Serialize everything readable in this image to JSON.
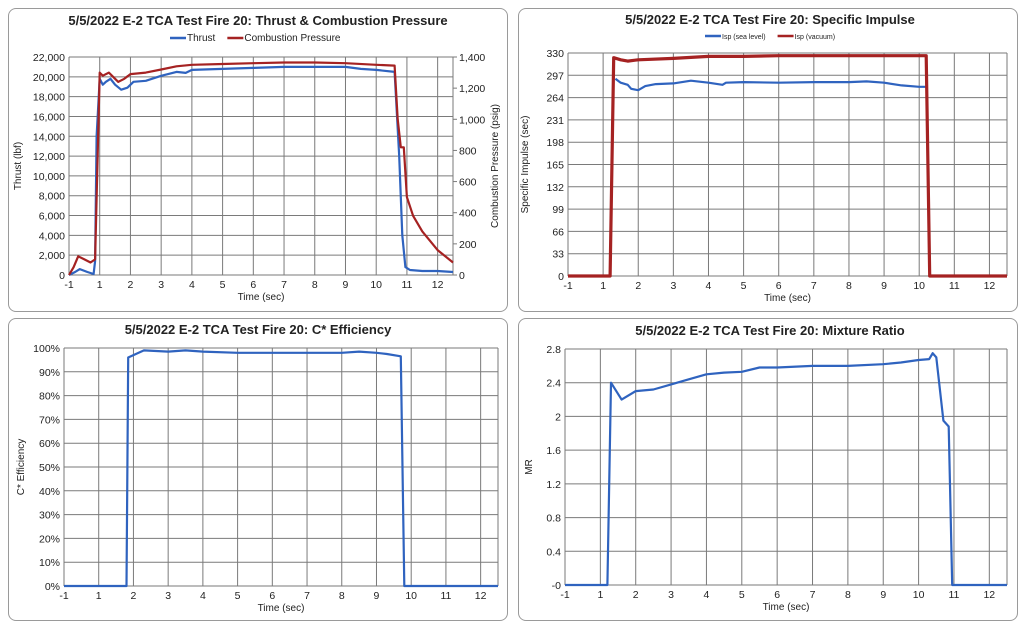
{
  "colors": {
    "blue": "#2f63bf",
    "red": "#a52222",
    "grid": "#7a7a7a"
  },
  "x_tick_labels": [
    "-1",
    "1",
    "2",
    "3",
    "4",
    "5",
    "6",
    "7",
    "8",
    "9",
    "10",
    "11",
    "12"
  ],
  "chart_data": [
    {
      "type": "line",
      "title": "5/5/2022 E-2 TCA Test Fire 20: Thrust & Combustion Pressure",
      "xlabel": "Time (sec)",
      "ylabel": "Thrust (lbf)",
      "y2label": "Combustion Pressure (psig)",
      "xlim": [
        0,
        12.5
      ],
      "ylim": [
        0,
        22000
      ],
      "y2lim": [
        0,
        1400
      ],
      "yticks": [
        "0",
        "2,000",
        "4,000",
        "6,000",
        "8,000",
        "10,000",
        "12,000",
        "14,000",
        "16,000",
        "18,000",
        "20,000",
        "22,000"
      ],
      "y2ticks": [
        "0",
        "200",
        "400",
        "600",
        "800",
        "1,000",
        "1,200",
        "1,400"
      ],
      "legend": "top",
      "grid": true,
      "series": [
        {
          "name": "Thrust",
          "color": "#2f63bf",
          "axis": "left",
          "points": [
            [
              0,
              0
            ],
            [
              0.2,
              300
            ],
            [
              0.35,
              600
            ],
            [
              0.6,
              300
            ],
            [
              0.8,
              100
            ],
            [
              0.85,
              1400
            ],
            [
              0.9,
              14000
            ],
            [
              1.0,
              19800
            ],
            [
              1.1,
              19200
            ],
            [
              1.2,
              19500
            ],
            [
              1.35,
              19800
            ],
            [
              1.5,
              19200
            ],
            [
              1.7,
              18700
            ],
            [
              1.9,
              18900
            ],
            [
              2.1,
              19500
            ],
            [
              2.5,
              19600
            ],
            [
              3,
              20100
            ],
            [
              3.5,
              20500
            ],
            [
              3.8,
              20400
            ],
            [
              4,
              20700
            ],
            [
              5,
              20800
            ],
            [
              6,
              20900
            ],
            [
              7,
              21000
            ],
            [
              8,
              21000
            ],
            [
              9,
              21000
            ],
            [
              9.5,
              20800
            ],
            [
              10,
              20700
            ],
            [
              10.6,
              20500
            ],
            [
              10.75,
              12000
            ],
            [
              10.85,
              4000
            ],
            [
              10.95,
              800
            ],
            [
              11.1,
              500
            ],
            [
              11.5,
              400
            ],
            [
              12,
              400
            ],
            [
              12.5,
              300
            ]
          ]
        },
        {
          "name": "Combustion Pressure",
          "color": "#a52222",
          "axis": "right",
          "points": [
            [
              0,
              0
            ],
            [
              0.15,
              50
            ],
            [
              0.3,
              120
            ],
            [
              0.5,
              100
            ],
            [
              0.7,
              80
            ],
            [
              0.85,
              100
            ],
            [
              1.0,
              1300
            ],
            [
              1.1,
              1280
            ],
            [
              1.3,
              1300
            ],
            [
              1.5,
              1260
            ],
            [
              1.6,
              1240
            ],
            [
              1.8,
              1260
            ],
            [
              2,
              1290
            ],
            [
              2.5,
              1300
            ],
            [
              3,
              1320
            ],
            [
              3.5,
              1340
            ],
            [
              4,
              1350
            ],
            [
              5,
              1355
            ],
            [
              6,
              1360
            ],
            [
              7,
              1365
            ],
            [
              8,
              1365
            ],
            [
              9,
              1360
            ],
            [
              10,
              1350
            ],
            [
              10.6,
              1345
            ],
            [
              10.7,
              1000
            ],
            [
              10.8,
              820
            ],
            [
              10.9,
              820
            ],
            [
              11,
              500
            ],
            [
              11.2,
              380
            ],
            [
              11.5,
              280
            ],
            [
              12,
              160
            ],
            [
              12.5,
              80
            ]
          ]
        }
      ]
    },
    {
      "type": "line",
      "title": "5/5/2022 E-2 TCA Test Fire 20: Specific Impulse",
      "xlabel": "Time (sec)",
      "ylabel": "Specific Impulse (sec)",
      "xlim": [
        0,
        12.5
      ],
      "ylim": [
        0,
        330
      ],
      "yticks": [
        "0",
        "33",
        "66",
        "99",
        "132",
        "165",
        "198",
        "231",
        "264",
        "297",
        "330"
      ],
      "legend": "top",
      "grid": true,
      "series": [
        {
          "name": "Isp (sea level)",
          "color": "#2f63bf",
          "axis": "left",
          "points": [
            [
              1.35,
              292
            ],
            [
              1.5,
              286
            ],
            [
              1.7,
              283
            ],
            [
              1.8,
              277
            ],
            [
              2,
              275
            ],
            [
              2.2,
              281
            ],
            [
              2.5,
              284
            ],
            [
              3,
              285
            ],
            [
              3.5,
              289
            ],
            [
              4,
              286
            ],
            [
              4.4,
              283
            ],
            [
              4.5,
              286
            ],
            [
              5,
              287
            ],
            [
              6,
              286
            ],
            [
              7,
              287
            ],
            [
              8,
              287
            ],
            [
              8.5,
              288
            ],
            [
              9,
              286
            ],
            [
              9.5,
              282
            ],
            [
              10,
              280
            ],
            [
              10.2,
              280
            ]
          ]
        },
        {
          "name": "Isp (vacuum)",
          "color": "#a52222",
          "axis": "left",
          "points": [
            [
              0,
              0
            ],
            [
              1.2,
              0
            ],
            [
              1.3,
              323
            ],
            [
              1.5,
              320
            ],
            [
              1.7,
              318
            ],
            [
              2,
              320
            ],
            [
              3,
              322
            ],
            [
              4,
              325
            ],
            [
              5,
              325
            ],
            [
              6,
              326
            ],
            [
              7,
              326
            ],
            [
              8,
              326
            ],
            [
              9,
              326
            ],
            [
              10.2,
              326
            ],
            [
              10.3,
              0
            ],
            [
              12.5,
              0
            ]
          ]
        }
      ]
    },
    {
      "type": "line",
      "title": "5/5/2022 E-2 TCA Test Fire 20: C* Efficiency",
      "xlabel": "Time (sec)",
      "ylabel": "C* Efficiency",
      "xlim": [
        0,
        12.5
      ],
      "ylim": [
        0,
        100
      ],
      "yticks": [
        "0%",
        "10%",
        "20%",
        "30%",
        "40%",
        "50%",
        "60%",
        "70%",
        "80%",
        "90%",
        "100%"
      ],
      "legend": "none",
      "grid": true,
      "series": [
        {
          "name": "C* Efficiency",
          "color": "#2f63bf",
          "axis": "left",
          "points": [
            [
              0,
              0
            ],
            [
              1.8,
              0
            ],
            [
              1.85,
              96
            ],
            [
              2,
              97
            ],
            [
              2.3,
              99
            ],
            [
              3,
              98.5
            ],
            [
              3.5,
              99
            ],
            [
              4,
              98.5
            ],
            [
              5,
              98
            ],
            [
              6,
              98
            ],
            [
              7,
              98
            ],
            [
              8,
              98
            ],
            [
              8.5,
              98.5
            ],
            [
              9,
              98
            ],
            [
              9.3,
              97.5
            ],
            [
              9.7,
              96.5
            ],
            [
              9.8,
              0
            ],
            [
              12.5,
              0
            ]
          ]
        }
      ]
    },
    {
      "type": "line",
      "title": "5/5/2022 E-2 TCA Test Fire 20: Mixture Ratio",
      "xlabel": "Time (sec)",
      "ylabel": "MR",
      "xlim": [
        0,
        12.5
      ],
      "ylim": [
        0,
        2.8
      ],
      "yticks": [
        "-0",
        "0.4",
        "0.8",
        "1.2",
        "1.6",
        "2",
        "2.4",
        "2.8"
      ],
      "legend": "none",
      "grid": true,
      "series": [
        {
          "name": "MR",
          "color": "#2f63bf",
          "axis": "left",
          "points": [
            [
              0,
              0
            ],
            [
              1.2,
              0
            ],
            [
              1.3,
              2.4
            ],
            [
              1.6,
              2.2
            ],
            [
              2,
              2.3
            ],
            [
              2.5,
              2.32
            ],
            [
              3,
              2.38
            ],
            [
              3.5,
              2.44
            ],
            [
              4,
              2.5
            ],
            [
              4.5,
              2.52
            ],
            [
              5,
              2.53
            ],
            [
              5.5,
              2.58
            ],
            [
              6,
              2.58
            ],
            [
              7,
              2.6
            ],
            [
              8,
              2.6
            ],
            [
              9,
              2.62
            ],
            [
              9.5,
              2.64
            ],
            [
              10,
              2.67
            ],
            [
              10.3,
              2.68
            ],
            [
              10.4,
              2.75
            ],
            [
              10.5,
              2.7
            ],
            [
              10.7,
              1.95
            ],
            [
              10.85,
              1.88
            ],
            [
              10.95,
              0
            ],
            [
              12.5,
              0
            ]
          ]
        }
      ]
    }
  ]
}
